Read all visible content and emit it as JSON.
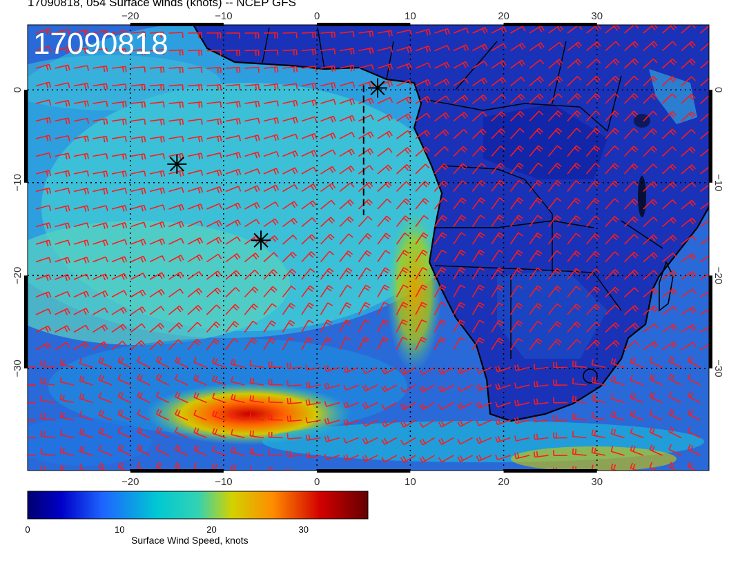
{
  "header": {
    "title": "17090818, 054 Surface winds (knots) -- NCEP GFS",
    "stamp": "17090818"
  },
  "map": {
    "lon_range": [
      -31,
      42
    ],
    "lat_range": [
      -41,
      7
    ],
    "lon_ticks": [
      -20,
      -10,
      0,
      10,
      20,
      30
    ],
    "lat_ticks": [
      0,
      -10,
      -20,
      -30
    ],
    "top_lon_labels": [
      "−20",
      "−10",
      "0",
      "10",
      "20",
      "30"
    ],
    "bottom_lon_labels": [
      "−20",
      "−10",
      "0",
      "10",
      "20",
      "30"
    ],
    "left_lat_labels": [
      "0",
      "−10",
      "−20",
      "−30"
    ],
    "right_lat_labels": [
      "0",
      "−10",
      "−20",
      "−30"
    ],
    "barb_color": "#ff1a1a",
    "coast_color": "#000000",
    "markers": [
      {
        "lon": 6.5,
        "lat": 0.2,
        "symbol": "asterisk"
      },
      {
        "lon": -15,
        "lat": -8.0,
        "symbol": "asterisk"
      },
      {
        "lon": -6,
        "lat": -16.2,
        "symbol": "asterisk"
      }
    ]
  },
  "colorbar": {
    "title": "Surface Wind Speed, knots",
    "min": 0,
    "max": 37,
    "tick_values": [
      0,
      10,
      20,
      30
    ],
    "tick_labels": [
      "0",
      "10",
      "20",
      "30"
    ],
    "colors": [
      "#000070",
      "#0000c8",
      "#1e64ff",
      "#00c8d2",
      "#32d2b4",
      "#d2d200",
      "#ff8c00",
      "#d20000",
      "#640000"
    ]
  }
}
